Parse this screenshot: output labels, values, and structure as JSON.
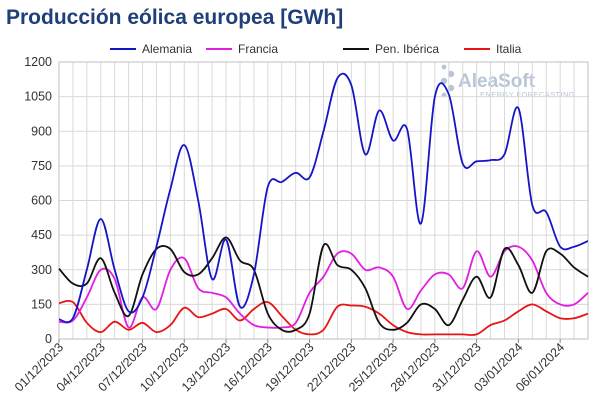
{
  "page": {
    "title": "Producción eólica europea [GWh]"
  },
  "logo": {
    "name": "AleaSoft",
    "tagline": "ENERGY FORECASTING",
    "icon": "aleasoft-logo-icon"
  },
  "chart_data": {
    "type": "line",
    "title": "Producción eólica europea [GWh]",
    "xlabel": "",
    "ylabel": "",
    "ylim": [
      0,
      1200
    ],
    "yticks": [
      0,
      150,
      300,
      450,
      600,
      750,
      900,
      1050,
      1200
    ],
    "x": [
      "01/12/2023",
      "02/12/2023",
      "03/12/2023",
      "04/12/2023",
      "05/12/2023",
      "06/12/2023",
      "07/12/2023",
      "08/12/2023",
      "09/12/2023",
      "10/12/2023",
      "11/12/2023",
      "12/12/2023",
      "13/12/2023",
      "14/12/2023",
      "15/12/2023",
      "16/12/2023",
      "17/12/2023",
      "18/12/2023",
      "19/12/2023",
      "20/12/2023",
      "21/12/2023",
      "22/12/2023",
      "23/12/2023",
      "24/12/2023",
      "25/12/2023",
      "26/12/2023",
      "27/12/2023",
      "28/12/2023",
      "29/12/2023",
      "30/12/2023",
      "31/12/2023",
      "01/01/2024",
      "02/01/2024",
      "03/01/2024",
      "04/01/2024",
      "05/01/2024",
      "06/01/2024",
      "07/01/2024",
      "08/01/2024"
    ],
    "x_tick_labels": [
      "01/12/2023",
      "04/12/2023",
      "07/12/2023",
      "10/12/2023",
      "13/12/2023",
      "16/12/2023",
      "19/12/2023",
      "22/12/2023",
      "25/12/2023",
      "28/12/2023",
      "31/12/2023",
      "03/01/2024",
      "06/01/2024"
    ],
    "grid": true,
    "legend": "top",
    "series": [
      {
        "name": "Alemania",
        "color": "#1515c8",
        "values": [
          85,
          90,
          300,
          520,
          300,
          120,
          180,
          400,
          650,
          840,
          600,
          260,
          430,
          140,
          280,
          660,
          680,
          720,
          700,
          900,
          1130,
          1100,
          800,
          990,
          860,
          910,
          500,
          1050,
          1060,
          760,
          770,
          775,
          800,
          1000,
          580,
          550,
          400,
          400,
          425
        ]
      },
      {
        "name": "Francia",
        "color": "#e020e0",
        "values": [
          75,
          80,
          180,
          300,
          260,
          50,
          180,
          130,
          300,
          350,
          220,
          200,
          180,
          110,
          60,
          50,
          50,
          70,
          200,
          270,
          370,
          370,
          300,
          310,
          270,
          130,
          210,
          280,
          280,
          220,
          380,
          270,
          380,
          400,
          340,
          200,
          150,
          150,
          200
        ]
      },
      {
        "name": "Pen. Ibérica",
        "color": "#111111",
        "values": [
          305,
          240,
          240,
          350,
          200,
          100,
          280,
          390,
          390,
          290,
          280,
          350,
          440,
          340,
          300,
          110,
          40,
          40,
          110,
          405,
          320,
          300,
          220,
          70,
          40,
          70,
          150,
          130,
          60,
          170,
          270,
          180,
          390,
          320,
          200,
          380,
          370,
          310,
          270
        ]
      },
      {
        "name": "Italia",
        "color": "#e81515",
        "values": [
          155,
          160,
          70,
          30,
          75,
          40,
          70,
          30,
          60,
          135,
          95,
          110,
          130,
          80,
          130,
          160,
          100,
          40,
          20,
          40,
          140,
          145,
          140,
          110,
          60,
          30,
          20,
          20,
          20,
          20,
          20,
          60,
          80,
          120,
          150,
          120,
          90,
          90,
          110
        ]
      }
    ]
  }
}
